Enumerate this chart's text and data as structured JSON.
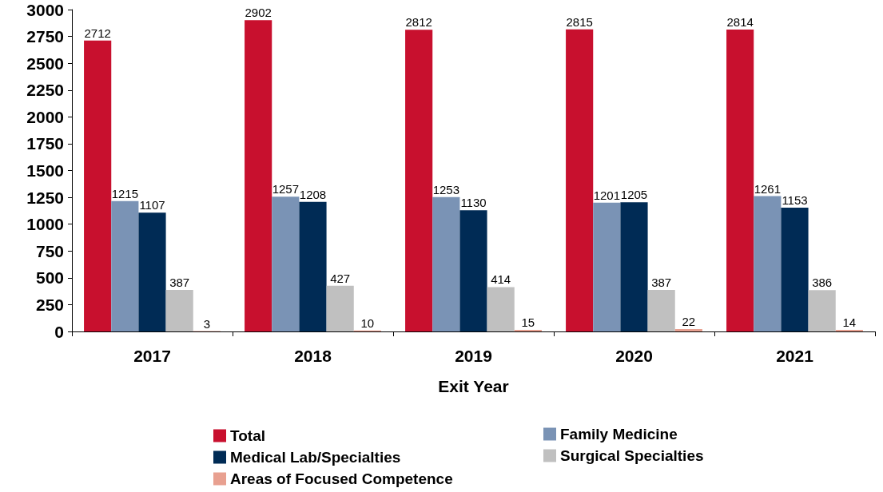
{
  "chart_data": {
    "type": "bar",
    "xlabel": "Exit Year",
    "categories": [
      "2017",
      "2018",
      "2019",
      "2020",
      "2021"
    ],
    "series": [
      {
        "name": "Total",
        "color": "#c8102e",
        "values": [
          2712,
          2902,
          2812,
          2815,
          2814
        ]
      },
      {
        "name": "Family Medicine",
        "color": "#7a93b5",
        "values": [
          1215,
          1257,
          1253,
          1201,
          1261
        ]
      },
      {
        "name": "Medical Lab/Specialties",
        "color": "#002b55",
        "values": [
          1107,
          1208,
          1130,
          1205,
          1153
        ]
      },
      {
        "name": "Surgical Specialties",
        "color": "#c0c0c0",
        "values": [
          387,
          427,
          414,
          387,
          386
        ]
      },
      {
        "name": "Areas of Focused Competence",
        "color": "#e8a090",
        "values": [
          3,
          10,
          15,
          22,
          14
        ]
      }
    ],
    "ylim": [
      0,
      3000
    ],
    "yticks": [
      0,
      250,
      500,
      750,
      1000,
      1250,
      1500,
      1750,
      2000,
      2250,
      2500,
      2750,
      3000
    ],
    "grid": false,
    "legend": "bottom",
    "data_labels": true
  }
}
